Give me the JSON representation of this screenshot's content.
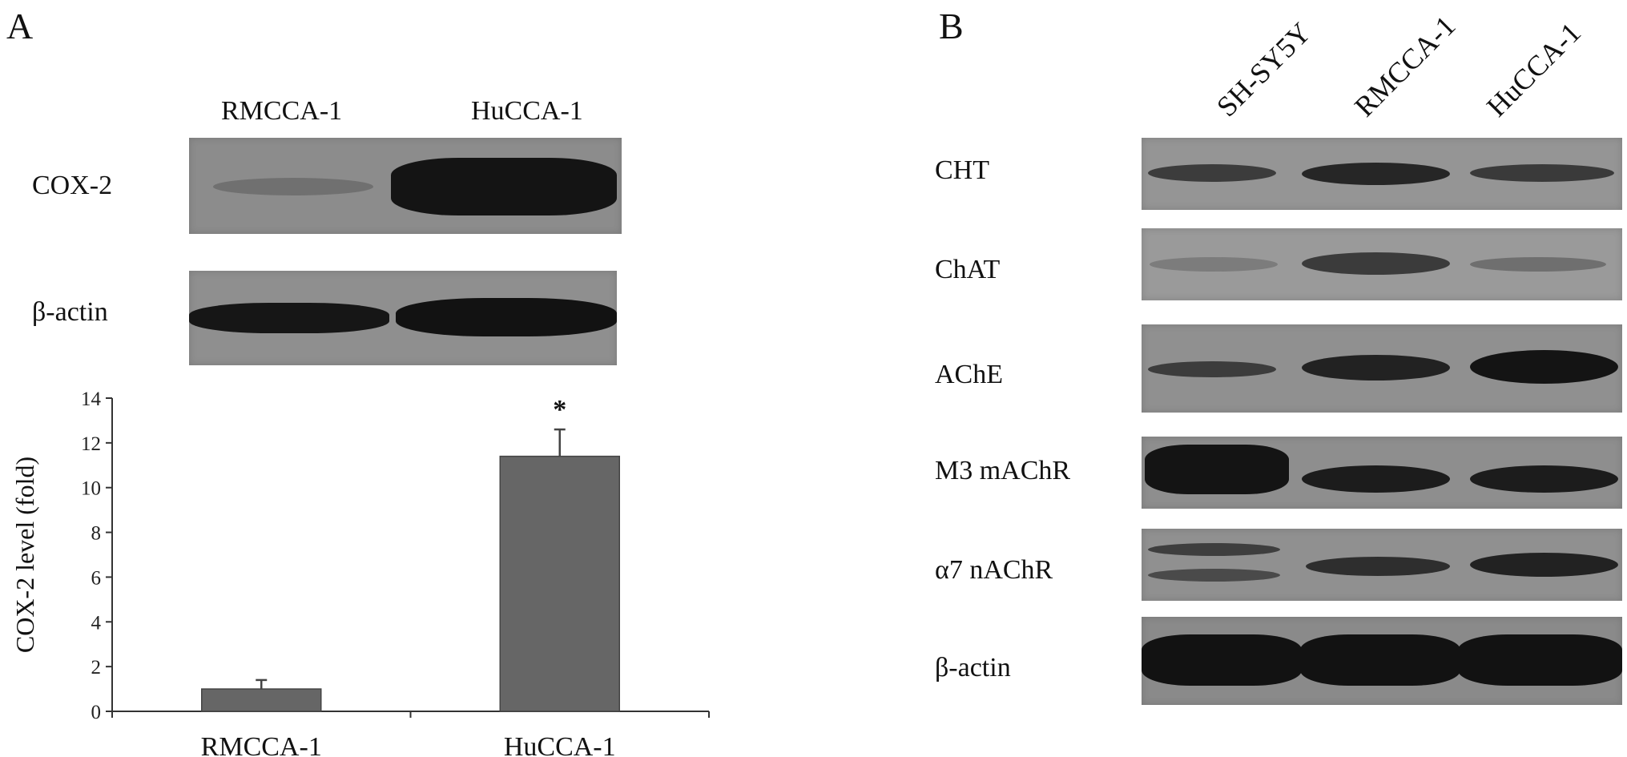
{
  "panel_a": {
    "letter": "A",
    "lanes": [
      "RMCCA-1",
      "HuCCA-1"
    ],
    "rows": [
      "COX-2",
      "β-actin"
    ]
  },
  "panel_b": {
    "letter": "B",
    "lanes": [
      "SH-SY5Y",
      "RMCCA-1",
      "HuCCA-1"
    ],
    "rows": [
      "CHT",
      "ChAT",
      "AChE",
      "M3 mAChR",
      "α7 nAChR",
      "β-actin"
    ]
  },
  "chart_data": {
    "type": "bar",
    "categories": [
      "RMCCA-1",
      "HuCCA-1"
    ],
    "values": [
      1.0,
      11.4
    ],
    "errors": [
      0.4,
      1.2
    ],
    "annotations": [
      "",
      "*"
    ],
    "ylabel": "COX-2 level (fold)",
    "ylim": [
      0,
      14
    ],
    "yticks": [
      0,
      2,
      4,
      6,
      8,
      10,
      12,
      14
    ],
    "bar_color": "#666666",
    "grid": false
  }
}
